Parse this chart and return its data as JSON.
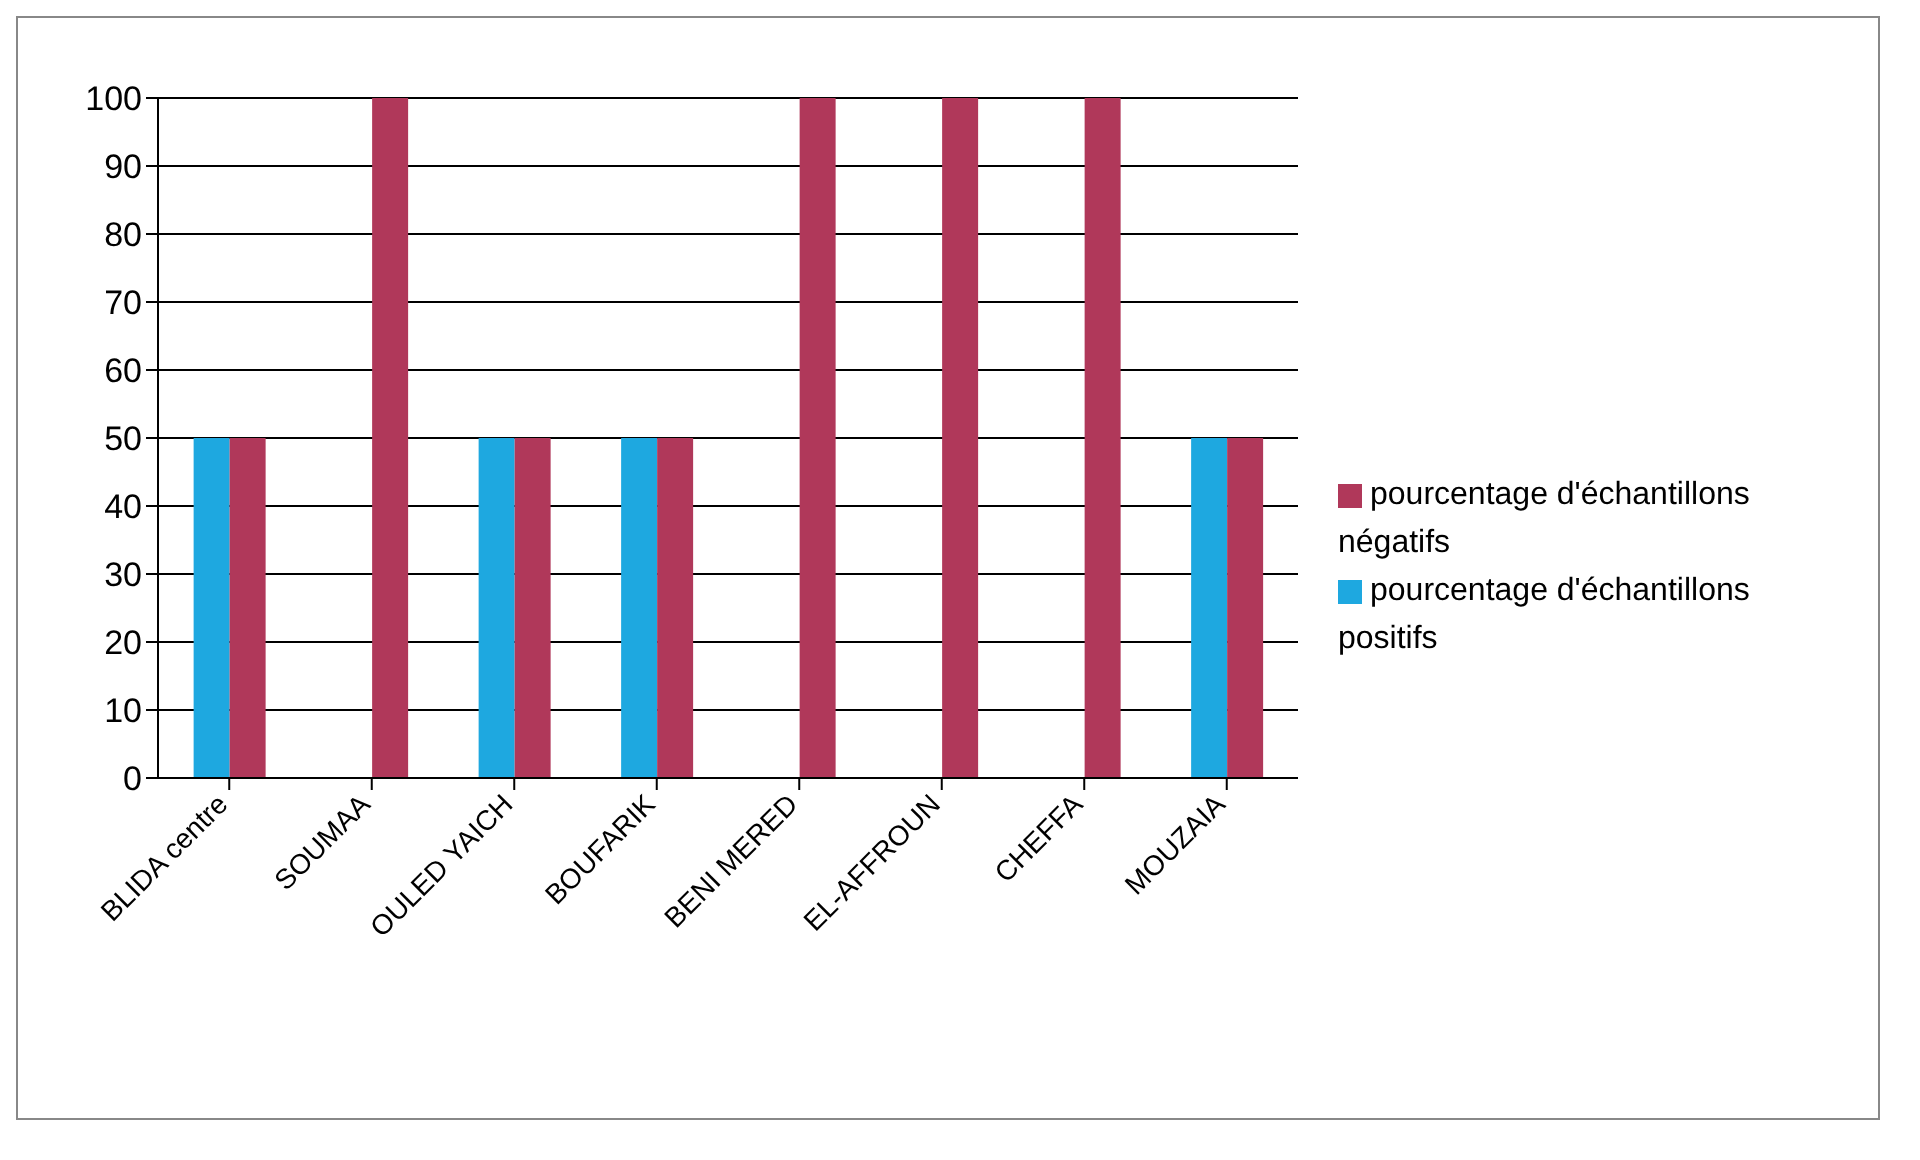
{
  "chart_data": {
    "type": "bar",
    "categories": [
      "BLIDA centre",
      "SOUMAA",
      "OULED YAICH",
      "BOUFARIK",
      "BENI MERED",
      "EL-AFFROUN",
      "CHEFFA",
      "MOUZAIA"
    ],
    "series": [
      {
        "name": "pourcentage d'échantillons positifs",
        "color": "#1ea8e0",
        "values": [
          50,
          0,
          50,
          50,
          0,
          0,
          0,
          50
        ]
      },
      {
        "name": "pourcentage d'échantillons négatifs",
        "color": "#b0385a",
        "values": [
          50,
          100,
          50,
          50,
          100,
          100,
          100,
          50
        ]
      }
    ],
    "ylim": [
      0,
      100
    ],
    "yticks": [
      0,
      10,
      20,
      30,
      40,
      50,
      60,
      70,
      80,
      90,
      100
    ],
    "grid": "y",
    "legend": "right"
  }
}
